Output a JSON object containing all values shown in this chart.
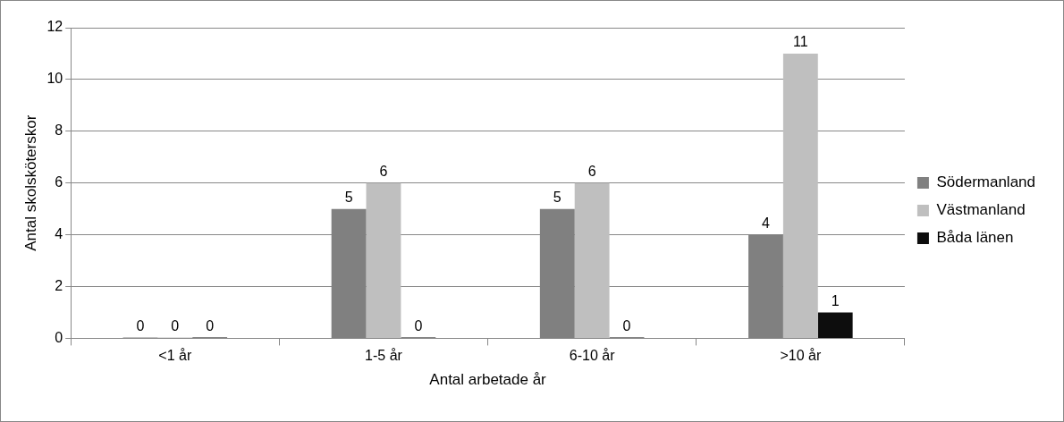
{
  "chart_data": {
    "type": "bar",
    "xlabel": "Antal arbetade år",
    "ylabel": "Antal skolsköterskor",
    "categories": [
      "<1 år",
      "1-5 år",
      "6-10 år",
      ">10 år"
    ],
    "series": [
      {
        "name": "Södermanland",
        "color": "#808080",
        "values": [
          0,
          5,
          5,
          4
        ]
      },
      {
        "name": "Västmanland",
        "color": "#bfbfbf",
        "values": [
          0,
          6,
          6,
          11
        ]
      },
      {
        "name": "Båda länen",
        "color": "#0d0d0d",
        "values": [
          0,
          0,
          0,
          1
        ]
      }
    ],
    "ylim": [
      0,
      12
    ],
    "yticks": [
      0,
      2,
      4,
      6,
      8,
      10,
      12
    ],
    "grid": "y",
    "legend": "right",
    "data_labels": true
  }
}
